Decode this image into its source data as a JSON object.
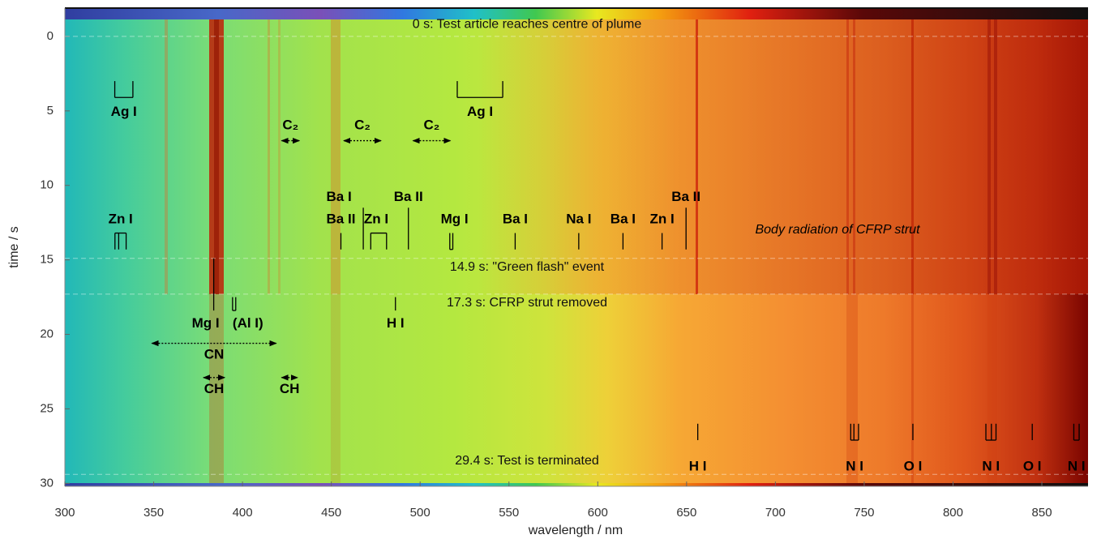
{
  "chart_data": {
    "type": "heatmap",
    "xlabel": "wavelength / nm",
    "ylabel": "time / s",
    "xlim": [
      300,
      876
    ],
    "ylim": [
      -1.9,
      30.2
    ],
    "xticks": [
      300,
      350,
      400,
      450,
      500,
      550,
      600,
      650,
      700,
      750,
      800,
      850
    ],
    "yticks": [
      0,
      5,
      10,
      15,
      20,
      25,
      30
    ],
    "events": [
      {
        "time": 0,
        "label": "0 s: Test article reaches centre of plume"
      },
      {
        "time": 14.9,
        "label": "14.9 s: \"Green flash\" event"
      },
      {
        "time": 17.3,
        "label": "17.3 s: CFRP strut removed"
      },
      {
        "time": 29.4,
        "label": "29.4 s: Test is terminated"
      }
    ],
    "note": "Body radiation of CFRP strut",
    "annotations": [
      {
        "label": "Ag I",
        "lines": [
          328.1,
          338.3
        ]
      },
      {
        "label": "Ag I",
        "lines": [
          520.9,
          546.5
        ]
      },
      {
        "label": "C₂",
        "lines": [
          422,
          432
        ]
      },
      {
        "label": "C₂",
        "lines": [
          457,
          478
        ]
      },
      {
        "label": "C₂",
        "lines": [
          496,
          517
        ]
      },
      {
        "label": "Zn I",
        "lines": [
          328.2,
          330.3,
          334.5
        ]
      },
      {
        "label": "Ba II",
        "lines": [
          455.4
        ]
      },
      {
        "label": "Ba I",
        "lines": [
          468
        ]
      },
      {
        "label": "Zn I",
        "lines": [
          472.2,
          481.1
        ]
      },
      {
        "label": "Ba II",
        "lines": [
          493.4
        ]
      },
      {
        "label": "Mg I",
        "lines": [
          516.7,
          518.4
        ]
      },
      {
        "label": "Ba I",
        "lines": [
          553.5
        ]
      },
      {
        "label": "Na I",
        "lines": [
          589.3
        ]
      },
      {
        "label": "Ba I",
        "lines": [
          614.2
        ]
      },
      {
        "label": "Zn I",
        "lines": [
          636.2
        ]
      },
      {
        "label": "Ba II",
        "lines": [
          649.7
        ]
      },
      {
        "label": "Mg I",
        "lines": [
          383.8
        ]
      },
      {
        "label": "(Al I)",
        "lines": [
          394.4,
          396.2
        ]
      },
      {
        "label": "H I",
        "lines": [
          486.1
        ]
      },
      {
        "label": "CN",
        "lines": [
          349,
          419
        ]
      },
      {
        "label": "CH",
        "lines": [
          378,
          390
        ]
      },
      {
        "label": "CH",
        "lines": [
          422,
          431
        ]
      },
      {
        "label": "H I",
        "lines": [
          656.3
        ]
      },
      {
        "label": "N I",
        "lines": [
          742.4,
          744.2,
          746.8
        ]
      },
      {
        "label": "O I",
        "lines": [
          777.4
        ]
      },
      {
        "label": "N I",
        "lines": [
          818.5,
          821.6,
          824.2
        ]
      },
      {
        "label": "O I",
        "lines": [
          844.6
        ]
      },
      {
        "label": "N I",
        "lines": [
          868.0,
          871.0
        ]
      }
    ]
  }
}
